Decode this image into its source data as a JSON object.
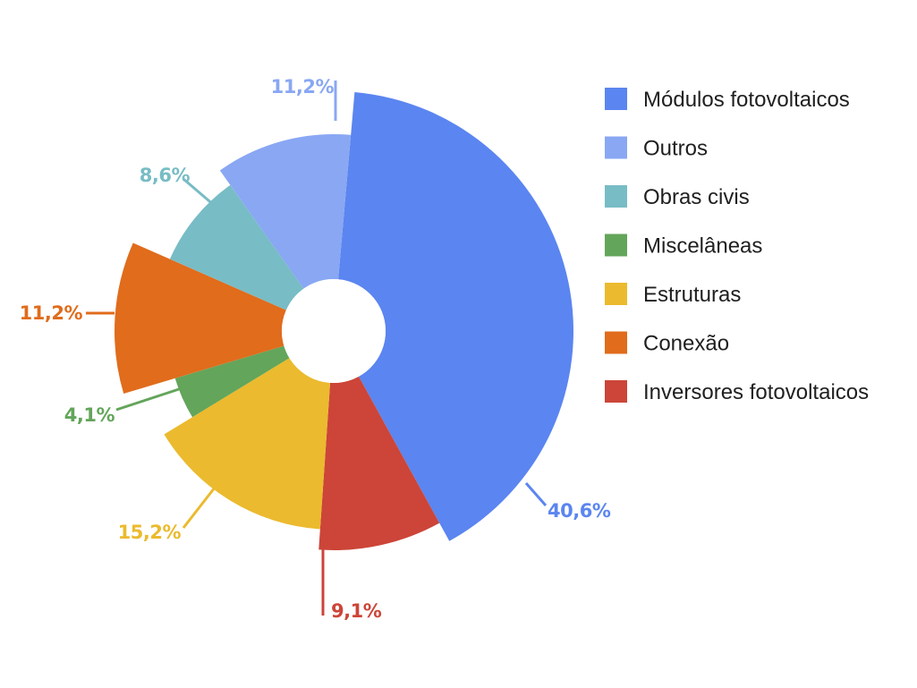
{
  "chart_data": {
    "type": "pie",
    "title": "",
    "legend_position": "right",
    "slices": [
      {
        "label": "Módulos fotovoltaicos",
        "value": 40.6,
        "value_label": "40,6%",
        "color": "#5b85f0"
      },
      {
        "label": "Inversores fotovoltaicos",
        "value": 9.1,
        "value_label": "9,1%",
        "color": "#cc4538"
      },
      {
        "label": "Estruturas",
        "value": 15.2,
        "value_label": "15,2%",
        "color": "#ebba2e"
      },
      {
        "label": "Miscelâneas",
        "value": 4.1,
        "value_label": "4,1%",
        "color": "#63a55a"
      },
      {
        "label": "Conexão",
        "value": 11.2,
        "value_label": "11,2%",
        "color": "#e06c1c"
      },
      {
        "label": "Obras civis",
        "value": 8.6,
        "value_label": "8,6%",
        "color": "#78bcc5"
      },
      {
        "label": "Outros",
        "value": 11.2,
        "value_label": "11,2%",
        "color": "#89a7f3"
      }
    ],
    "legend": [
      {
        "label": "Módulos fotovoltaicos",
        "color": "#5b85f0"
      },
      {
        "label": "Outros",
        "color": "#89a7f3"
      },
      {
        "label": "Obras civis",
        "color": "#78bcc5"
      },
      {
        "label": "Miscelâneas",
        "color": "#63a55a"
      },
      {
        "label": "Estruturas",
        "color": "#ebba2e"
      },
      {
        "label": "Conexão",
        "color": "#e06c1c"
      },
      {
        "label": "Inversores fotovoltaicos",
        "color": "#cc4538"
      }
    ]
  }
}
